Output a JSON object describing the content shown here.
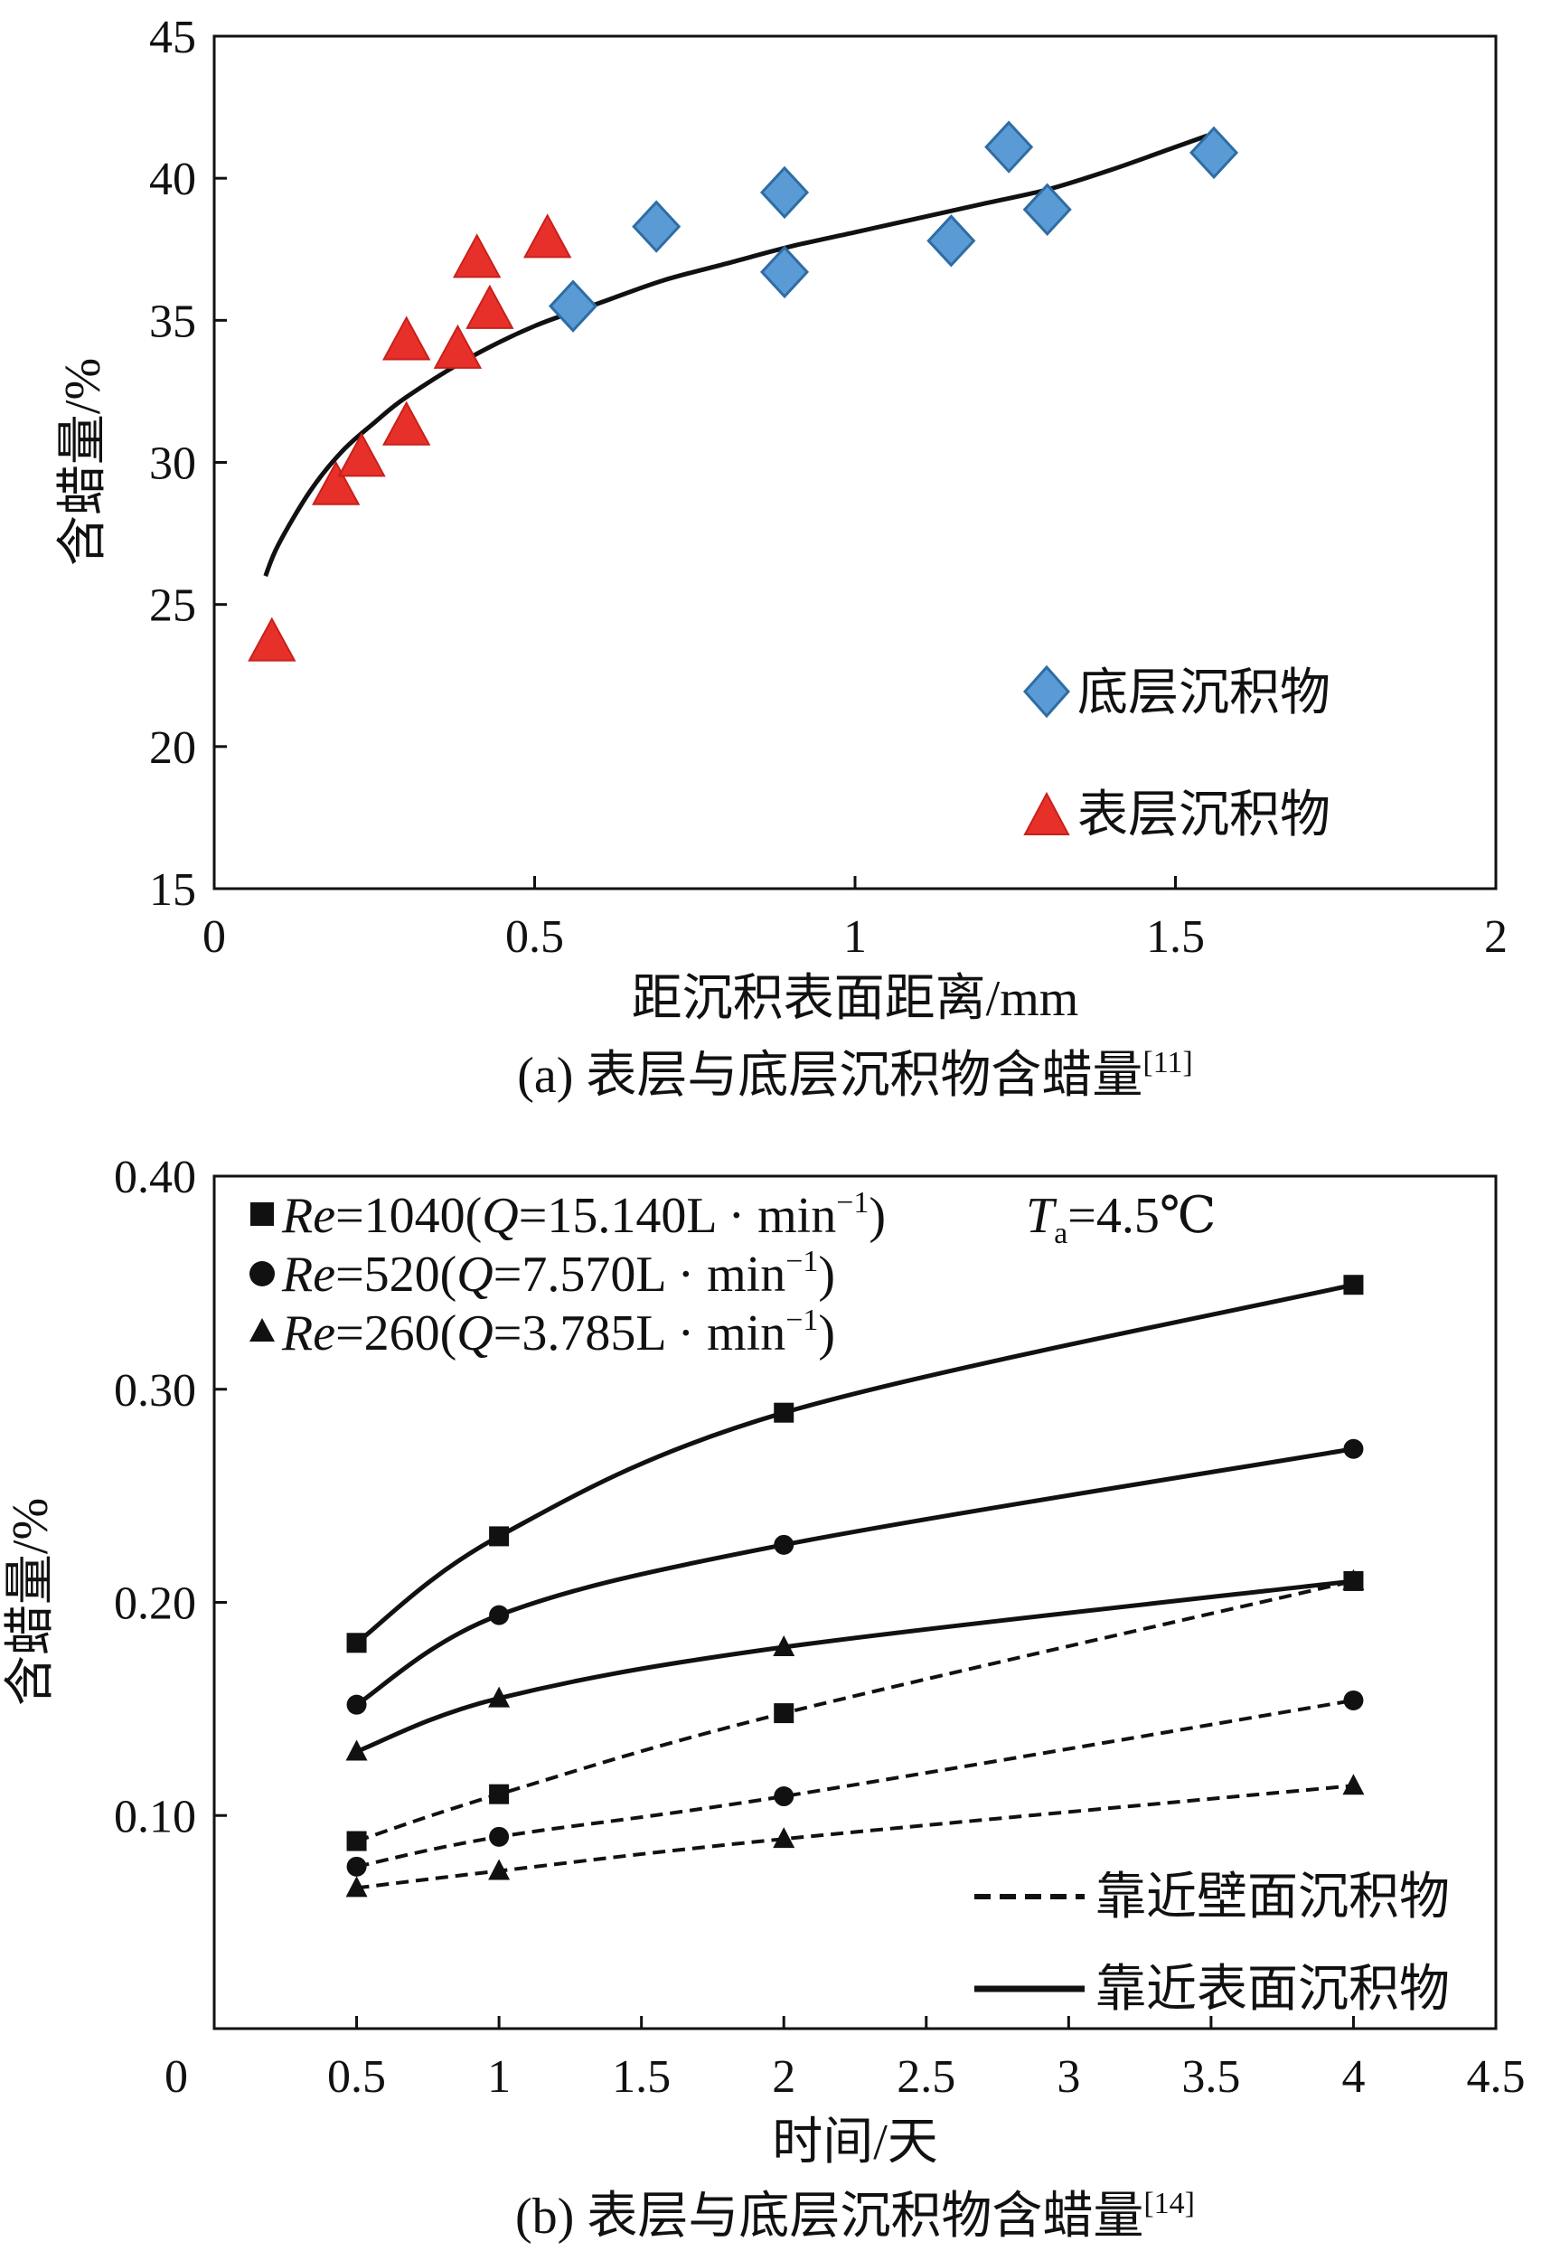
{
  "chart_data": [
    {
      "type": "scatter",
      "xlabel": "距沉积表面距离/mm",
      "ylabel": "含蜡量/%",
      "xlim": [
        0,
        2
      ],
      "ylim": [
        15,
        45
      ],
      "xticks": [
        "0",
        "0.5",
        "1",
        "1.5",
        "2"
      ],
      "yticks": [
        "15",
        "20",
        "25",
        "30",
        "35",
        "40",
        "45"
      ],
      "grid": false,
      "legend_placement": "bottom-right",
      "caption": "(a) 表层与底层沉积物含蜡量",
      "caption_ref": "[11]",
      "series": [
        {
          "name": "底层沉积物",
          "marker": "diamond",
          "color": "#5B9BD5",
          "x": [
            0.56,
            0.69,
            0.89,
            0.89,
            1.15,
            1.24,
            1.3,
            1.56
          ],
          "y": [
            35.5,
            38.3,
            39.5,
            36.7,
            37.8,
            41.1,
            38.9,
            40.9
          ]
        },
        {
          "name": "表层沉积物",
          "marker": "triangle",
          "color": "#E8302A",
          "x": [
            0.09,
            0.19,
            0.23,
            0.3,
            0.3,
            0.38,
            0.41,
            0.43,
            0.52
          ],
          "y": [
            23.6,
            29.1,
            30.1,
            34.2,
            31.2,
            33.9,
            37.1,
            35.3,
            37.8
          ]
        }
      ],
      "fit_curve": {
        "x": [
          0.08,
          0.1,
          0.15,
          0.2,
          0.25,
          0.3,
          0.4,
          0.5,
          0.6,
          0.7,
          0.8,
          0.9,
          1.0,
          1.1,
          1.2,
          1.3,
          1.4,
          1.5,
          1.55
        ],
        "y": [
          26.0,
          27.1,
          29.0,
          30.4,
          31.4,
          32.3,
          33.7,
          34.8,
          35.6,
          36.4,
          37.0,
          37.6,
          38.1,
          38.6,
          39.1,
          39.6,
          40.3,
          41.1,
          41.5
        ]
      }
    },
    {
      "type": "line",
      "xlabel": "时间/天",
      "ylabel": "含蜡量/%",
      "xlim": [
        0,
        4.5
      ],
      "ylim": [
        0,
        0.4
      ],
      "xticks": [
        "0",
        "0.5",
        "1",
        "1.5",
        "2",
        "2.5",
        "3",
        "3.5",
        "4",
        "4.5"
      ],
      "yticks": [
        "0.10",
        "0.20",
        "0.30",
        "0.40"
      ],
      "grid": false,
      "caption": "(b) 表层与底层沉积物含蜡量",
      "caption_ref": "[14]",
      "annotation": {
        "t": "T",
        "sub": "a",
        "rest": "=4.5℃"
      },
      "marker_legend": [
        {
          "marker": "square",
          "re": "Re",
          "rv": "=1040(",
          "q": "Q",
          "qv": "=15.140L · min",
          "exp": "−1",
          "close": ")"
        },
        {
          "marker": "circle",
          "re": "Re",
          "rv": "=520(",
          "q": "Q",
          "qv": "=7.570L · min",
          "exp": "−1",
          "close": ")"
        },
        {
          "marker": "triangle",
          "re": "Re",
          "rv": "=260(",
          "q": "Q",
          "qv": "=3.785L · min",
          "exp": "−1",
          "close": ")"
        }
      ],
      "line_legend": [
        {
          "name": "靠近壁面沉积物",
          "style": "dashed"
        },
        {
          "name": "靠近表面沉积物",
          "style": "solid"
        }
      ],
      "x": [
        0.5,
        1,
        2,
        4
      ],
      "series": [
        {
          "marker": "square",
          "style": "solid",
          "values": [
            0.181,
            0.231,
            0.289,
            0.349
          ]
        },
        {
          "marker": "circle",
          "style": "solid",
          "values": [
            0.152,
            0.194,
            0.227,
            0.272
          ]
        },
        {
          "marker": "triangle",
          "style": "solid",
          "values": [
            0.13,
            0.155,
            0.179,
            0.21
          ]
        },
        {
          "marker": "square",
          "style": "dashed",
          "values": [
            0.088,
            0.11,
            0.148,
            0.21
          ]
        },
        {
          "marker": "circle",
          "style": "dashed",
          "values": [
            0.076,
            0.09,
            0.109,
            0.154
          ]
        },
        {
          "marker": "triangle",
          "style": "dashed",
          "values": [
            0.066,
            0.074,
            0.089,
            0.114
          ]
        }
      ]
    }
  ]
}
